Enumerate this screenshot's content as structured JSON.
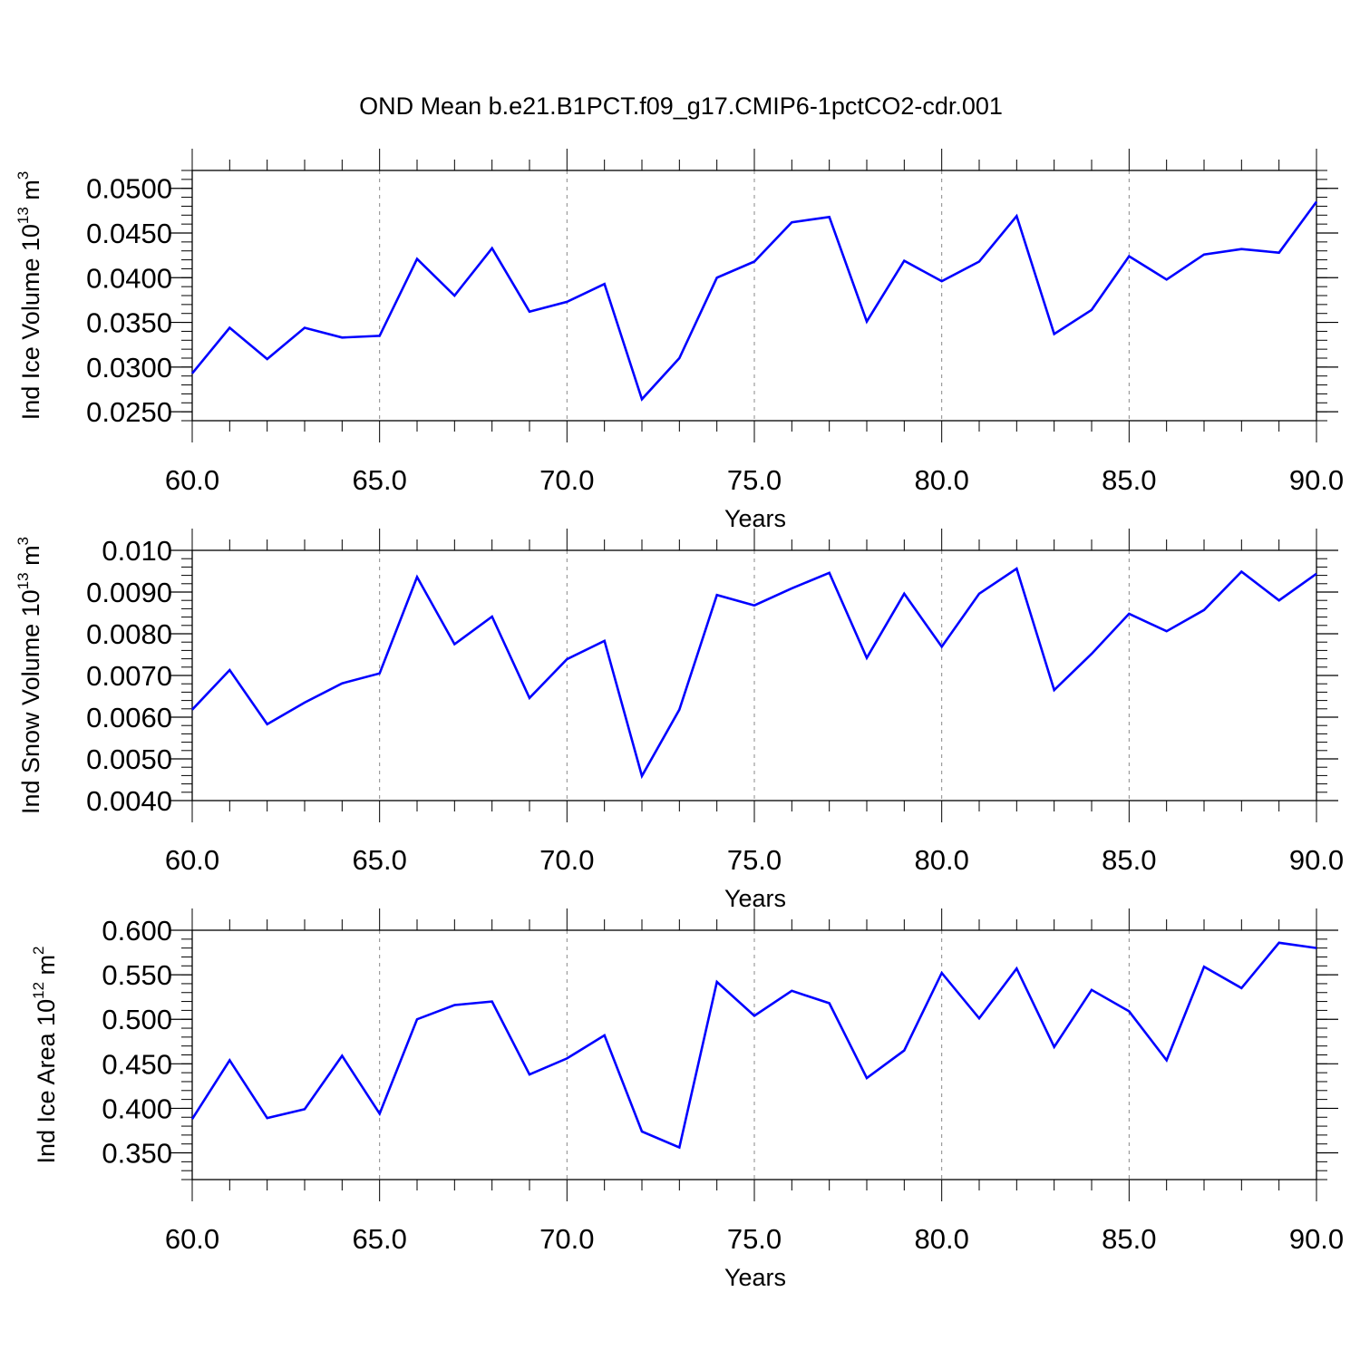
{
  "title": "OND Mean b.e21.B1PCT.f09_g17.CMIP6-1pctCO2-cdr.001",
  "colors": {
    "line": "#0000ff",
    "axis": "#000000",
    "grid": "#888888"
  },
  "chart_data": [
    {
      "type": "line",
      "ylabel": {
        "main": "Ind Ice Volume 10",
        "exp": "13",
        "unit": "m",
        "unit_exp": "3"
      },
      "xlabel": "Years",
      "xlim": [
        60,
        90
      ],
      "ylim": [
        0.024,
        0.052
      ],
      "xticks": [
        "60.0",
        "65.0",
        "70.0",
        "75.0",
        "80.0",
        "85.0",
        "90.0"
      ],
      "yticks": [
        "0.0250",
        "0.0300",
        "0.0350",
        "0.0400",
        "0.0450",
        "0.0500"
      ],
      "ytick_values": [
        0.025,
        0.03,
        0.035,
        0.04,
        0.045,
        0.05
      ],
      "x": [
        60,
        61,
        62,
        63,
        64,
        65,
        66,
        67,
        68,
        69,
        70,
        71,
        72,
        73,
        74,
        75,
        76,
        77,
        78,
        79,
        80,
        81,
        82,
        83,
        84,
        85,
        86,
        87,
        88,
        89,
        90
      ],
      "values": [
        0.0293,
        0.0344,
        0.0309,
        0.0344,
        0.0333,
        0.0335,
        0.0421,
        0.038,
        0.0433,
        0.0362,
        0.0373,
        0.0393,
        0.0264,
        0.031,
        0.04,
        0.0418,
        0.0462,
        0.0468,
        0.0351,
        0.0419,
        0.0396,
        0.0418,
        0.0469,
        0.0337,
        0.0364,
        0.0424,
        0.0398,
        0.0426,
        0.0432,
        0.0428,
        0.0485
      ],
      "grid": "vertical-dashed"
    },
    {
      "type": "line",
      "ylabel": {
        "main": "Ind Snow Volume 10",
        "exp": "13",
        "unit": "m",
        "unit_exp": "3"
      },
      "xlabel": "Years",
      "xlim": [
        60,
        90
      ],
      "ylim": [
        0.004,
        0.01
      ],
      "xticks": [
        "60.0",
        "65.0",
        "70.0",
        "75.0",
        "80.0",
        "85.0",
        "90.0"
      ],
      "yticks": [
        "0.0040",
        "0.0050",
        "0.0060",
        "0.0070",
        "0.0080",
        "0.0090",
        "0.010"
      ],
      "ytick_values": [
        0.004,
        0.005,
        0.006,
        0.007,
        0.008,
        0.009,
        0.01
      ],
      "x": [
        60,
        61,
        62,
        63,
        64,
        65,
        66,
        67,
        68,
        69,
        70,
        71,
        72,
        73,
        74,
        75,
        76,
        77,
        78,
        79,
        80,
        81,
        82,
        83,
        84,
        85,
        86,
        87,
        88,
        89,
        90
      ],
      "values": [
        0.00618,
        0.00713,
        0.00583,
        0.00635,
        0.00681,
        0.00705,
        0.00936,
        0.00775,
        0.00841,
        0.00646,
        0.00739,
        0.00783,
        0.00459,
        0.00618,
        0.00893,
        0.00868,
        0.00909,
        0.00946,
        0.00742,
        0.00896,
        0.00769,
        0.00896,
        0.00956,
        0.00665,
        0.00752,
        0.00848,
        0.00806,
        0.00857,
        0.00949,
        0.0088,
        0.00944
      ],
      "grid": "vertical-dashed"
    },
    {
      "type": "line",
      "ylabel": {
        "main": "Ind Ice Area 10",
        "exp": "12",
        "unit": "m",
        "unit_exp": "2"
      },
      "xlabel": "Years",
      "xlim": [
        60,
        90
      ],
      "ylim": [
        0.32,
        0.6
      ],
      "xticks": [
        "60.0",
        "65.0",
        "70.0",
        "75.0",
        "80.0",
        "85.0",
        "90.0"
      ],
      "yticks": [
        "0.350",
        "0.400",
        "0.450",
        "0.500",
        "0.550",
        "0.600"
      ],
      "ytick_values": [
        0.35,
        0.4,
        0.45,
        0.5,
        0.55,
        0.6
      ],
      "x": [
        60,
        61,
        62,
        63,
        64,
        65,
        66,
        67,
        68,
        69,
        70,
        71,
        72,
        73,
        74,
        75,
        76,
        77,
        78,
        79,
        80,
        81,
        82,
        83,
        84,
        85,
        86,
        87,
        88,
        89,
        90
      ],
      "values": [
        0.388,
        0.454,
        0.389,
        0.399,
        0.459,
        0.394,
        0.5,
        0.516,
        0.52,
        0.438,
        0.456,
        0.482,
        0.374,
        0.356,
        0.542,
        0.504,
        0.532,
        0.518,
        0.434,
        0.465,
        0.552,
        0.501,
        0.557,
        0.469,
        0.533,
        0.509,
        0.454,
        0.559,
        0.535,
        0.586,
        0.58
      ],
      "grid": "vertical-dashed"
    }
  ]
}
